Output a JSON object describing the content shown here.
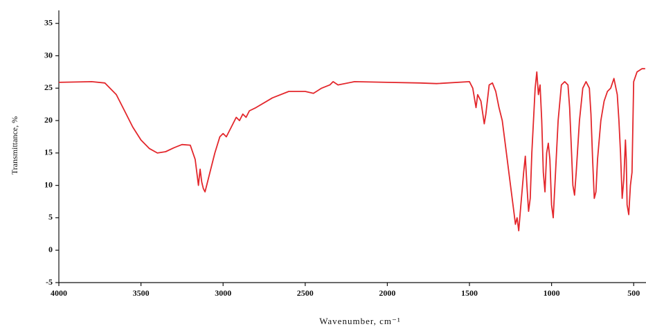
{
  "chart_data": {
    "type": "line",
    "x_label": "Wavenumber, cm⁻¹",
    "y_label": "Transmittance, %",
    "xlim": [
      4000,
      425
    ],
    "ylim": [
      -5,
      37
    ],
    "xticks": [
      4000,
      3500,
      3000,
      2500,
      2000,
      1500,
      1000,
      500
    ],
    "yticks": [
      -5,
      0,
      5,
      10,
      15,
      20,
      25,
      30,
      35
    ],
    "x": [
      4000,
      3800,
      3720,
      3650,
      3600,
      3550,
      3500,
      3450,
      3400,
      3350,
      3300,
      3250,
      3200,
      3170,
      3150,
      3140,
      3130,
      3120,
      3110,
      3100,
      3080,
      3050,
      3020,
      3000,
      2980,
      2950,
      2920,
      2900,
      2880,
      2860,
      2840,
      2800,
      2700,
      2600,
      2500,
      2450,
      2400,
      2350,
      2330,
      2300,
      2200,
      2000,
      1800,
      1700,
      1500,
      1480,
      1460,
      1450,
      1430,
      1410,
      1400,
      1380,
      1360,
      1340,
      1320,
      1300,
      1280,
      1250,
      1230,
      1220,
      1210,
      1200,
      1190,
      1170,
      1160,
      1150,
      1140,
      1130,
      1120,
      1100,
      1090,
      1080,
      1070,
      1060,
      1050,
      1040,
      1030,
      1020,
      1010,
      1000,
      990,
      980,
      960,
      940,
      920,
      900,
      890,
      880,
      870,
      860,
      850,
      830,
      810,
      790,
      770,
      760,
      750,
      740,
      730,
      720,
      700,
      680,
      660,
      640,
      620,
      600,
      590,
      580,
      570,
      560,
      550,
      545,
      540,
      530,
      520,
      510,
      500,
      480,
      450,
      430
    ],
    "series": [
      {
        "color": "#e3262b",
        "values": [
          25.9,
          26,
          25.8,
          24,
          21.5,
          19,
          17,
          15.7,
          15,
          15.2,
          15.8,
          16.3,
          16.2,
          14,
          10,
          12.5,
          10.5,
          9.5,
          9,
          10,
          12,
          15,
          17.5,
          18,
          17.5,
          19,
          20.5,
          20,
          21,
          20.5,
          21.5,
          22,
          23.5,
          24.5,
          24.5,
          24.2,
          25,
          25.5,
          26,
          25.5,
          26,
          25.9,
          25.8,
          25.7,
          26,
          25,
          22,
          24,
          23,
          19.5,
          21,
          25.5,
          25.8,
          24.5,
          22,
          20,
          16,
          10,
          6,
          4,
          5,
          3,
          6,
          12,
          14.5,
          10,
          6,
          8,
          15,
          25,
          27.5,
          24,
          25.5,
          20,
          12,
          9,
          15,
          16.5,
          14,
          7,
          5,
          10,
          20,
          25.5,
          26,
          25.5,
          22,
          16,
          10,
          8.5,
          12,
          20,
          25,
          26,
          25,
          21,
          14,
          8,
          9,
          14,
          20,
          23,
          24.5,
          25,
          26.5,
          24,
          20,
          15,
          8,
          11,
          17,
          14,
          7,
          5.5,
          10,
          12,
          26,
          27.5,
          28,
          28
        ]
      }
    ]
  }
}
